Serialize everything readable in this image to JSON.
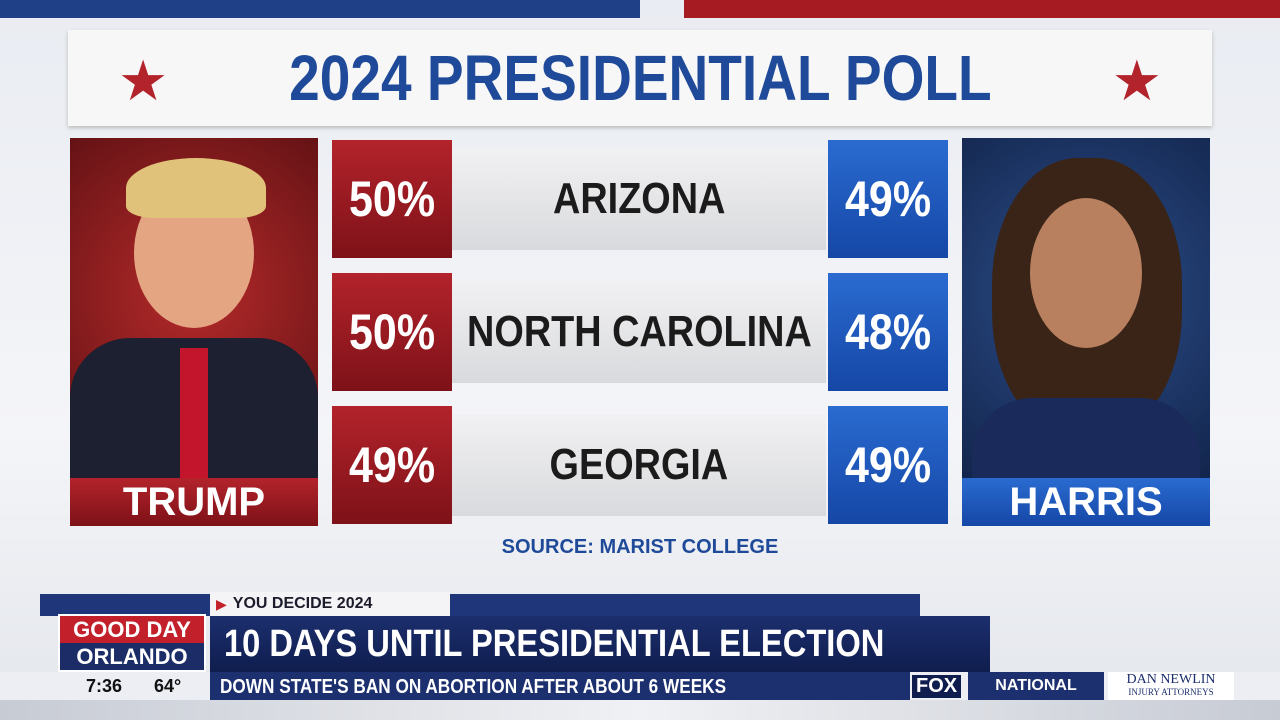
{
  "header": {
    "title": "2024 PRESIDENTIAL POLL"
  },
  "candidates": [
    {
      "name": "TRUMP"
    },
    {
      "name": "HARRIS"
    }
  ],
  "table": {
    "rows": [
      [
        "50%",
        "ARIZONA",
        "49%"
      ],
      [
        "50%",
        "NORTH CAROLINA",
        "48%"
      ],
      [
        "49%",
        "GEORGIA",
        "49%"
      ]
    ]
  },
  "source": "SOURCE: MARIST COLLEGE",
  "lower_third": {
    "tag": "YOU DECIDE 2024",
    "logo_top": "GOOD DAY",
    "logo_bottom": "ORLANDO",
    "headline": "10 DAYS UNTIL PRESIDENTIAL ELECTION",
    "time": "7:36",
    "temperature": "64°",
    "ticker": "DOWN STATE'S BAN ON ABORTION AFTER ABOUT 6 WEEKS",
    "network": "FOX",
    "section": "NATIONAL",
    "sponsor": "DAN NEWLIN",
    "sponsor_sub": "INJURY ATTORNEYS"
  }
}
